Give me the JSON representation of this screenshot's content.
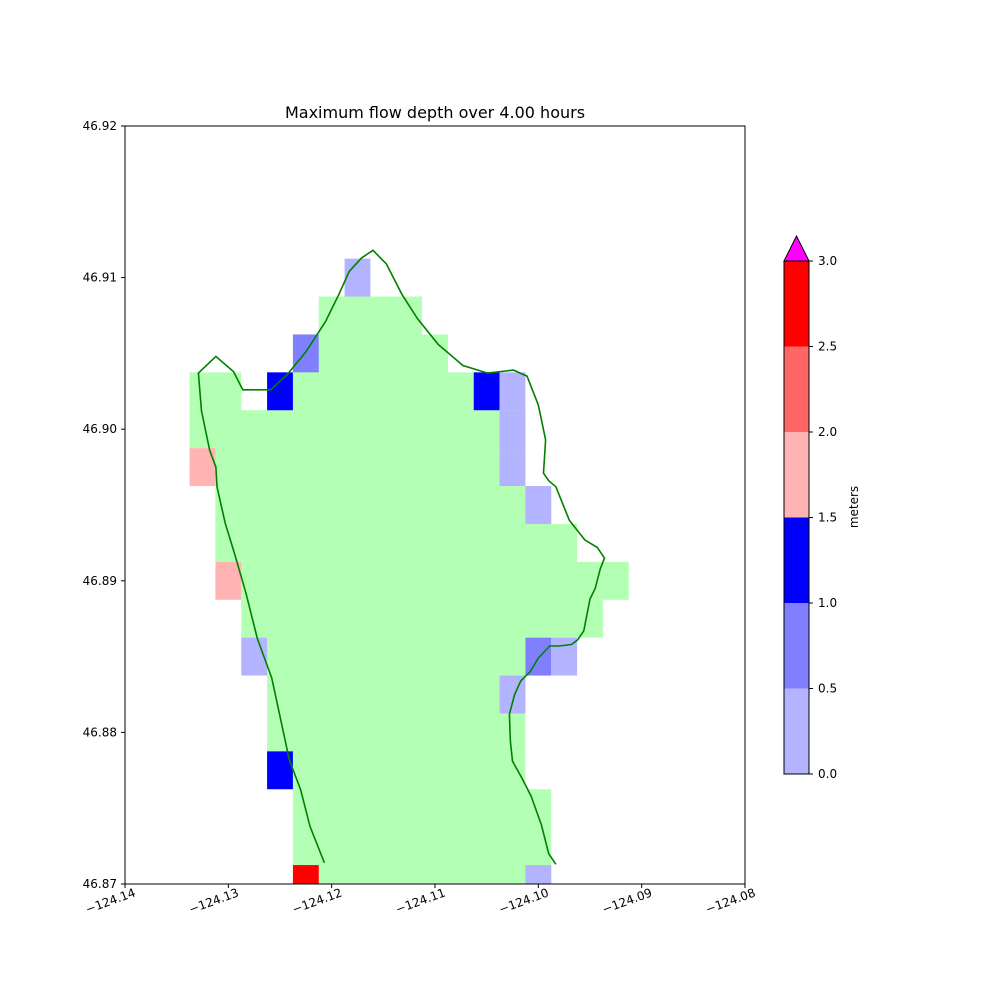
{
  "chart_data": {
    "type": "heatmap",
    "title": "Maximum flow depth over 4.00 hours",
    "xlabel": "",
    "ylabel": "",
    "xlim": [
      -124.14,
      -124.08
    ],
    "ylim": [
      46.87,
      46.92
    ],
    "xticks": [
      -124.14,
      -124.13,
      -124.12,
      -124.11,
      -124.1,
      -124.09,
      -124.08
    ],
    "yticks": [
      46.87,
      46.88,
      46.89,
      46.9,
      46.91,
      46.92
    ],
    "xtick_labels": [
      "−124.14",
      "−124.13",
      "−124.12",
      "−124.11",
      "−124.10",
      "−124.09",
      "−124.08"
    ],
    "ytick_labels": [
      "46.87",
      "46.88",
      "46.89",
      "46.90",
      "46.91",
      "46.92"
    ],
    "grid": false,
    "dry_land_color": "#b3ffb3",
    "cell_size_deg": {
      "dlon": 0.0025,
      "dlat": 0.0025
    },
    "land_cells": [
      {
        "lat": 46.9075,
        "lon_min": -124.12,
        "lon_max": -124.1175
      },
      {
        "lat": 46.9075,
        "lon_min": -124.1175,
        "lon_max": -124.1125
      },
      {
        "lat": 46.905,
        "lon_min": -124.1225,
        "lon_max": -124.11
      },
      {
        "lat": 46.9025,
        "lon_min": -124.1325,
        "lon_max": -124.13
      },
      {
        "lat": 46.9025,
        "lon_min": -124.1225,
        "lon_max": -124.105
      },
      {
        "lat": 46.9,
        "lon_min": -124.1325,
        "lon_max": -124.1025
      },
      {
        "lat": 46.8975,
        "lon_min": -124.13,
        "lon_max": -124.1025
      },
      {
        "lat": 46.895,
        "lon_min": -124.13,
        "lon_max": -124.1
      },
      {
        "lat": 46.8925,
        "lon_min": -124.13,
        "lon_max": -124.0975
      },
      {
        "lat": 46.89,
        "lon_min": -124.1275,
        "lon_max": -124.0925
      },
      {
        "lat": 46.8875,
        "lon_min": -124.1275,
        "lon_max": -124.095
      },
      {
        "lat": 46.885,
        "lon_min": -124.125,
        "lon_max": -124.1
      },
      {
        "lat": 46.8825,
        "lon_min": -124.125,
        "lon_max": -124.1025
      },
      {
        "lat": 46.88,
        "lon_min": -124.125,
        "lon_max": -124.1025
      },
      {
        "lat": 46.8775,
        "lon_min": -124.1225,
        "lon_max": -124.1025
      },
      {
        "lat": 46.875,
        "lon_min": -124.1225,
        "lon_max": -124.1
      },
      {
        "lat": 46.8725,
        "lon_min": -124.1225,
        "lon_max": -124.1
      },
      {
        "lat": 46.87,
        "lon_min": -124.12,
        "lon_max": -124.1
      }
    ],
    "flow_cells": [
      {
        "lon": -124.1175,
        "lat": 46.91,
        "depth": 0.25
      },
      {
        "lon": -124.1225,
        "lat": 46.905,
        "depth": 0.75
      },
      {
        "lon": -124.125,
        "lat": 46.9025,
        "depth": 1.25
      },
      {
        "lon": -124.105,
        "lat": 46.9025,
        "depth": 1.25
      },
      {
        "lon": -124.1025,
        "lat": 46.9025,
        "depth": 0.25
      },
      {
        "lon": -124.1025,
        "lat": 46.9,
        "depth": 0.25
      },
      {
        "lon": -124.1025,
        "lat": 46.8975,
        "depth": 0.25
      },
      {
        "lon": -124.1325,
        "lat": 46.8975,
        "depth": 1.75
      },
      {
        "lon": -124.1,
        "lat": 46.895,
        "depth": 0.25
      },
      {
        "lon": -124.13,
        "lat": 46.89,
        "depth": 1.75
      },
      {
        "lon": -124.1275,
        "lat": 46.885,
        "depth": 0.25
      },
      {
        "lon": -124.1,
        "lat": 46.885,
        "depth": 0.75
      },
      {
        "lon": -124.0975,
        "lat": 46.885,
        "depth": 0.25
      },
      {
        "lon": -124.1025,
        "lat": 46.8825,
        "depth": 0.25
      },
      {
        "lon": -124.125,
        "lat": 46.8775,
        "depth": 1.25
      },
      {
        "lon": -124.1225,
        "lat": 46.87,
        "depth": 2.75
      },
      {
        "lon": -124.1,
        "lat": 46.87,
        "depth": 0.25
      }
    ],
    "coastline": {
      "color": "#008000",
      "points": [
        [
          -124.1207,
          46.8714
        ],
        [
          -124.1221,
          46.8738
        ],
        [
          -124.123,
          46.8762
        ],
        [
          -124.1241,
          46.8782
        ],
        [
          -124.1258,
          46.8836
        ],
        [
          -124.1272,
          46.8862
        ],
        [
          -124.1283,
          46.8892
        ],
        [
          -124.1294,
          46.8918
        ],
        [
          -124.1303,
          46.8938
        ],
        [
          -124.1311,
          46.8962
        ],
        [
          -124.1312,
          46.8975
        ],
        [
          -124.1318,
          46.8986
        ],
        [
          -124.1326,
          46.9012
        ],
        [
          -124.1329,
          46.9037
        ],
        [
          -124.1312,
          46.9048
        ],
        [
          -124.1295,
          46.9038
        ],
        [
          -124.1286,
          46.9026
        ],
        [
          -124.1259,
          46.9026
        ],
        [
          -124.1243,
          46.9036
        ],
        [
          -124.1225,
          46.9051
        ],
        [
          -124.1206,
          46.9071
        ],
        [
          -124.1193,
          46.9089
        ],
        [
          -124.1183,
          46.9104
        ],
        [
          -124.1171,
          46.9113
        ],
        [
          -124.116,
          46.9118
        ],
        [
          -124.1147,
          46.9109
        ],
        [
          -124.1132,
          46.9089
        ],
        [
          -124.1117,
          46.9073
        ],
        [
          -124.1097,
          46.9056
        ],
        [
          -124.1073,
          46.9042
        ],
        [
          -124.1049,
          46.9037
        ],
        [
          -124.1024,
          46.9039
        ],
        [
          -124.1011,
          46.9035
        ],
        [
          -124.1,
          46.9016
        ],
        [
          -124.0993,
          46.8993
        ],
        [
          -124.0995,
          46.8971
        ],
        [
          -124.099,
          46.8966
        ],
        [
          -124.0983,
          46.8962
        ],
        [
          -124.097,
          46.894
        ],
        [
          -124.0955,
          46.8927
        ],
        [
          -124.0943,
          46.8922
        ],
        [
          -124.0936,
          46.8915
        ],
        [
          -124.094,
          46.8908
        ],
        [
          -124.0945,
          46.8895
        ],
        [
          -124.095,
          46.8888
        ],
        [
          -124.0956,
          46.8867
        ],
        [
          -124.0962,
          46.8861
        ],
        [
          -124.0968,
          46.8858
        ],
        [
          -124.098,
          46.8857
        ],
        [
          -124.0989,
          46.8857
        ],
        [
          -124.1,
          46.8849
        ],
        [
          -124.1008,
          46.884
        ],
        [
          -124.1017,
          46.8834
        ],
        [
          -124.1023,
          46.8825
        ],
        [
          -124.1028,
          46.8812
        ],
        [
          -124.1027,
          46.8794
        ],
        [
          -124.1025,
          46.8781
        ],
        [
          -124.1016,
          46.877
        ],
        [
          -124.1007,
          46.8758
        ],
        [
          -124.0997,
          46.8739
        ],
        [
          -124.099,
          46.872
        ],
        [
          -124.0983,
          46.8713
        ]
      ]
    },
    "colorbar": {
      "label": "meters",
      "tick_labels": [
        "0.0",
        "0.5",
        "1.0",
        "1.5",
        "2.0",
        "2.5",
        "3.0"
      ],
      "ticks": [
        0.0,
        0.5,
        1.0,
        1.5,
        2.0,
        2.5,
        3.0
      ],
      "bins": [
        {
          "min": 0.0,
          "max": 0.5,
          "color": "#b3b3ff"
        },
        {
          "min": 0.5,
          "max": 1.0,
          "color": "#8080ff"
        },
        {
          "min": 1.0,
          "max": 1.5,
          "color": "#0000ff"
        },
        {
          "min": 1.5,
          "max": 2.0,
          "color": "#ffb3b3"
        },
        {
          "min": 2.0,
          "max": 2.5,
          "color": "#ff6666"
        },
        {
          "min": 2.5,
          "max": 3.0,
          "color": "#ff0000"
        }
      ],
      "over_color": "#ff00ff"
    }
  }
}
